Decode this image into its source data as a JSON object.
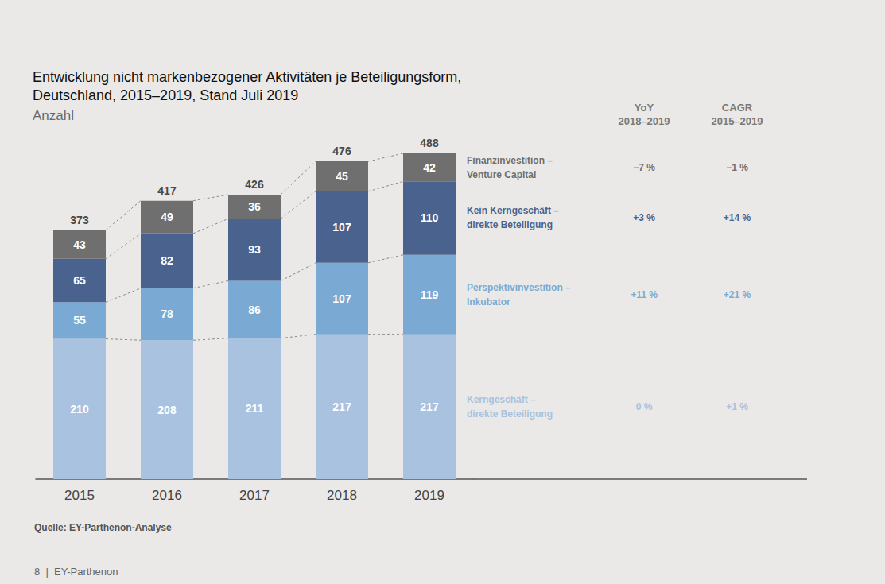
{
  "chart_data": {
    "type": "bar",
    "title": "Entwicklung nicht markenbezogener Aktivitäten je Beteiligungsform,\nDeutschland, 2015–2019, Stand Juli 2019",
    "subtitle": "Anzahl",
    "categories": [
      "2015",
      "2016",
      "2017",
      "2018",
      "2019"
    ],
    "series": [
      {
        "name": "Kerngeschäft –\ndirekte Beteiligung",
        "color": "#a8c2e0",
        "values": [
          210,
          208,
          211,
          217,
          217
        ],
        "yoy": "0 %",
        "cagr": "+1 %"
      },
      {
        "name": "Perspektivinvestition –\nInkubator",
        "color": "#7aaad4",
        "values": [
          55,
          78,
          86,
          107,
          119
        ],
        "yoy": "+11 %",
        "cagr": "+21 %"
      },
      {
        "name": "Kein Kerngeschäft –\ndirekte Beteiligung",
        "color": "#4a628e",
        "values": [
          65,
          82,
          93,
          107,
          110
        ],
        "yoy": "+3 %",
        "cagr": "+14 %"
      },
      {
        "name": "Finanzinvestition –\nVenture Capital",
        "color": "#6f6f6f",
        "values": [
          43,
          49,
          36,
          45,
          42
        ],
        "yoy": "−7 %",
        "cagr": "−1 %"
      }
    ],
    "totals": [
      373,
      417,
      426,
      476,
      488
    ],
    "columns": [
      "YoY\n2018–2019",
      "CAGR\n2015–2019"
    ],
    "source": "Quelle: EY-Parthenon-Analyse",
    "footer": "8  |  EY-Parthenon",
    "ylim": [
      0,
      488
    ],
    "stacked": true,
    "data_labels": true,
    "tick_labels": "x",
    "grid": false
  }
}
